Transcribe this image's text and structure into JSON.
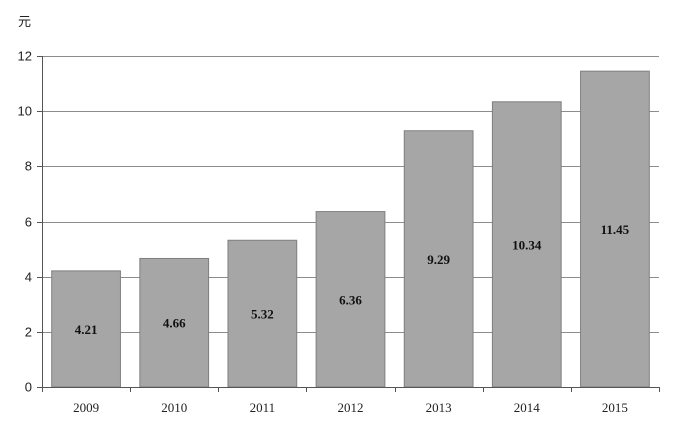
{
  "chart_data": {
    "type": "bar",
    "categories": [
      "2009",
      "2010",
      "2011",
      "2012",
      "2013",
      "2014",
      "2015"
    ],
    "values": [
      4.21,
      4.66,
      5.32,
      6.36,
      9.29,
      10.34,
      11.45
    ],
    "data_labels": [
      "4.21",
      "4.66",
      "5.32",
      "6.36",
      "9.29",
      "10.34",
      "11.45"
    ],
    "title": "",
    "xlabel": "",
    "ylabel": "元",
    "ylim": [
      0,
      12
    ],
    "yticks": [
      0,
      2,
      4,
      6,
      8,
      10,
      12
    ],
    "grid": true,
    "bar_color": "#a6a6a6",
    "bar_edge_color": "#7f7f7f",
    "grid_color": "#8c8c8c"
  }
}
